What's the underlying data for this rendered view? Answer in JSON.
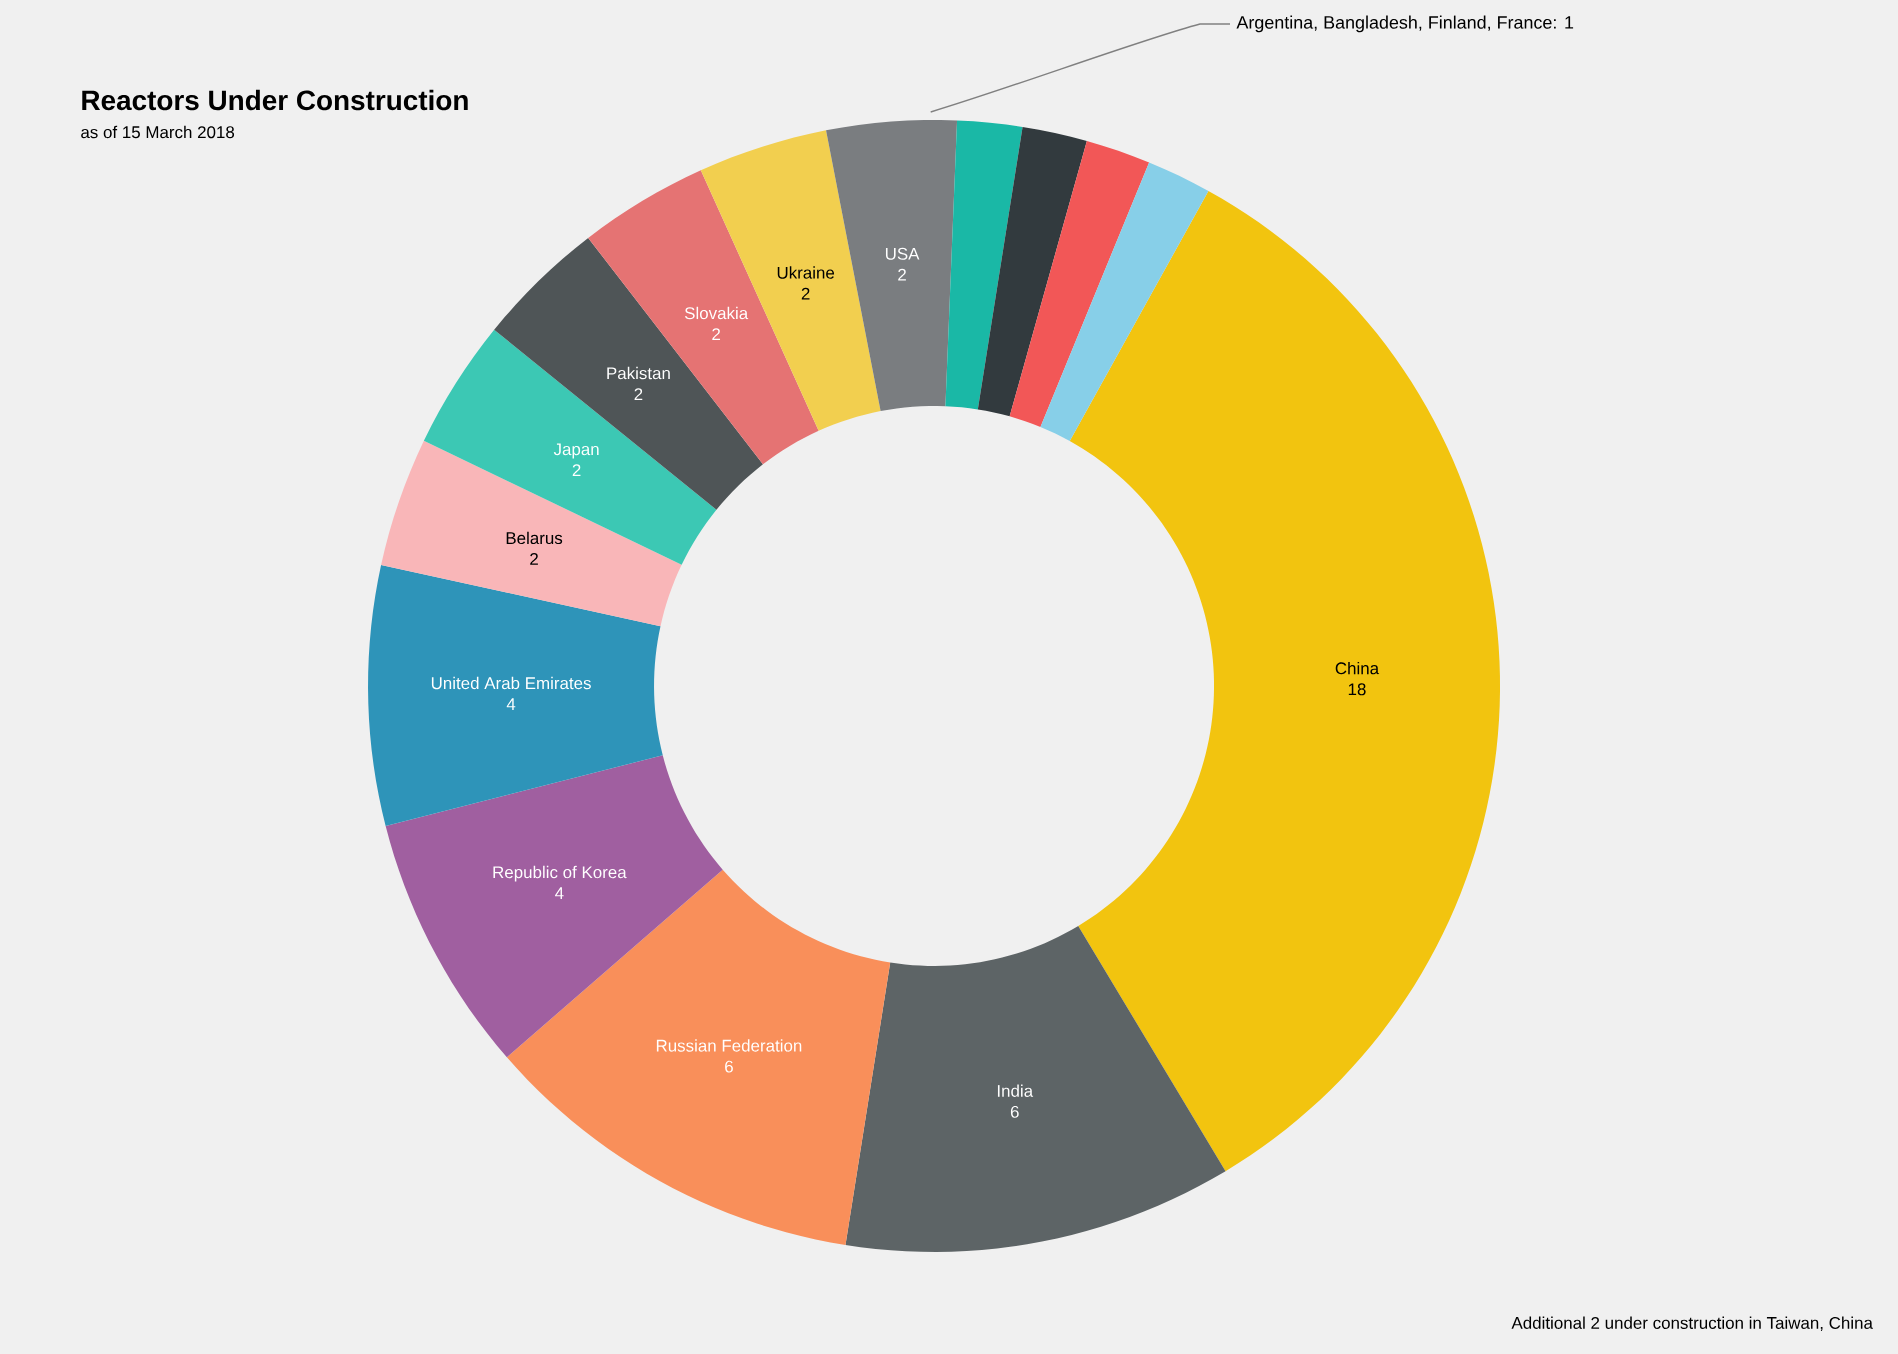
{
  "chart_data": {
    "type": "donut",
    "title": "Reactors Under Construction",
    "subtitle": "as of 15 March 2018",
    "categories": [
      "China",
      "India",
      "Russian Federation",
      "Republic of Korea",
      "United Arab Emirates",
      "Belarus",
      "Japan",
      "Pakistan",
      "Slovakia",
      "Ukraine",
      "USA",
      null,
      null,
      null,
      null
    ],
    "values": [
      18,
      6,
      6,
      4,
      4,
      2,
      2,
      2,
      2,
      2,
      2,
      1,
      1,
      1,
      1
    ],
    "colors": [
      "#f2c40f",
      "#5d6466",
      "#f98f5a",
      "#a05fa0",
      "#2e94b9",
      "#f9b6b8",
      "#3cc8b4",
      "#4f5557",
      "#e57373",
      "#f2cf4f",
      "#7a7d80",
      "#1ab8a6",
      "#323a3e",
      "#f25757",
      "#87cfe8"
    ],
    "value_labels": [
      "18",
      "6",
      "6",
      "4",
      "4",
      "2",
      "2",
      "2",
      "2",
      "2",
      "2",
      null,
      null,
      null,
      null
    ],
    "annotations": [
      "Argentina, Bangladesh, Finland, France: 1",
      "Additional 2 under construction in Taiwan, China"
    ]
  }
}
